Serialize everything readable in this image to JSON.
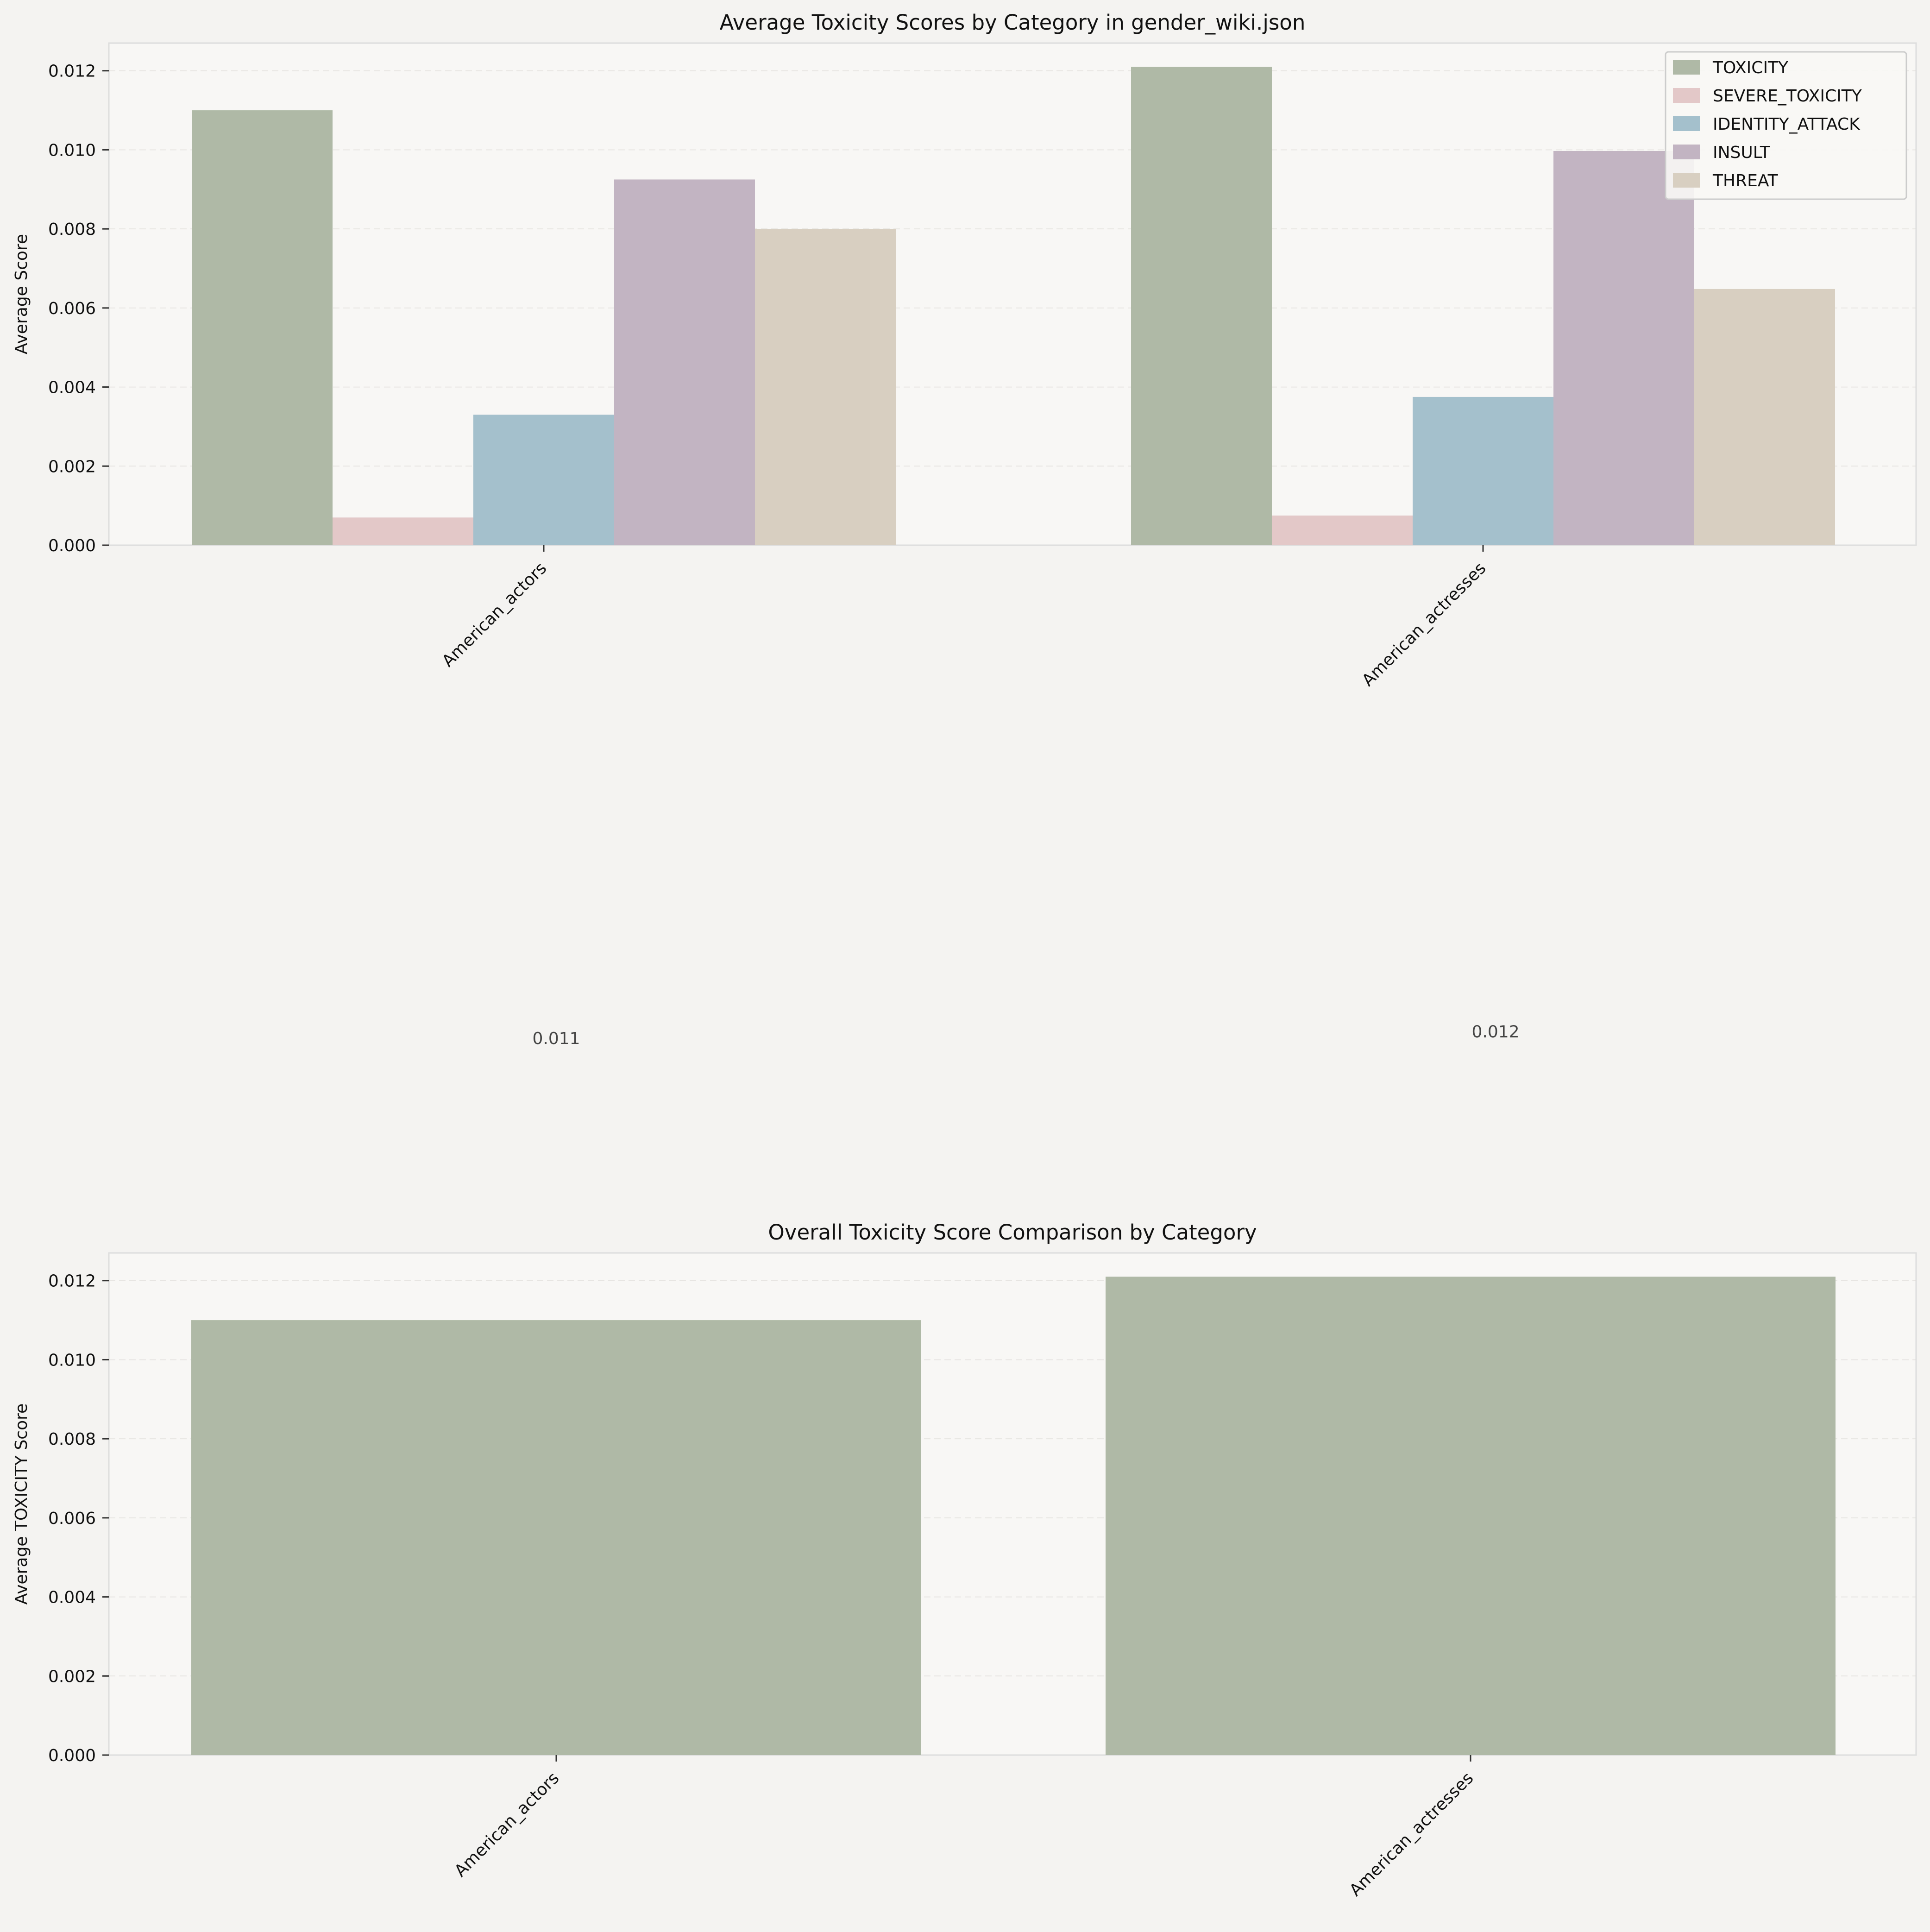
{
  "figure_background": "#f4f3f1",
  "axes_background": "#f8f7f5",
  "chart_data": [
    {
      "type": "bar",
      "title": "Average Toxicity Scores by Category in gender_wiki.json",
      "xlabel": "",
      "ylabel": "Average Score",
      "categories": [
        "American_actors",
        "American_actresses"
      ],
      "series": [
        {
          "name": "TOXICITY",
          "color": "#afb9a6",
          "values": [
            0.011,
            0.0121
          ]
        },
        {
          "name": "SEVERE_TOXICITY",
          "color": "#e3c8c8",
          "values": [
            0.0007,
            0.00075
          ]
        },
        {
          "name": "IDENTITY_ATTACK",
          "color": "#a4c0cc",
          "values": [
            0.0033,
            0.00375
          ]
        },
        {
          "name": "INSULT",
          "color": "#c2b4c2",
          "values": [
            0.00925,
            0.00997
          ]
        },
        {
          "name": "THREAT",
          "color": "#d8cfc1",
          "values": [
            0.008,
            0.00648
          ]
        }
      ],
      "ylim": [
        0,
        0.0127
      ],
      "yticks": [
        "0.000",
        "0.002",
        "0.004",
        "0.006",
        "0.008",
        "0.010",
        "0.012"
      ],
      "grid": true,
      "legend": "top-right",
      "annotations": [
        {
          "category": "American_actors",
          "text": "0.011",
          "value": 0.011
        },
        {
          "category": "American_actresses",
          "text": "0.012",
          "value": 0.0121
        }
      ]
    },
    {
      "type": "bar",
      "title": "Overall Toxicity Score Comparison by Category",
      "xlabel": "",
      "ylabel": "Average TOXICITY Score",
      "categories": [
        "American_actors",
        "American_actresses"
      ],
      "series": [
        {
          "color": "#afb9a6",
          "values": [
            0.011,
            0.0121
          ]
        }
      ],
      "ylim": [
        0,
        0.0127
      ],
      "yticks": [
        "0.000",
        "0.002",
        "0.004",
        "0.006",
        "0.008",
        "0.010",
        "0.012"
      ],
      "grid": true
    }
  ]
}
